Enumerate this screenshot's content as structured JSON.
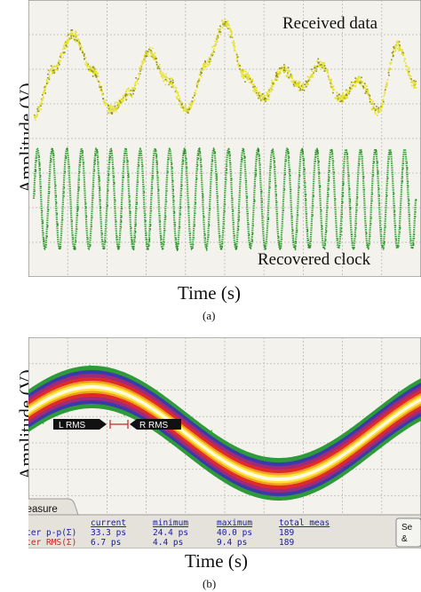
{
  "chart_data": [
    {
      "type": "line",
      "panel": "(a)",
      "xlabel": "Time (s)",
      "ylabel": "Amplitude (V)",
      "grid": true,
      "annotations": [
        "Received data",
        "Recovered clock"
      ],
      "series": [
        {
          "name": "Received data",
          "color": "#e6e22a",
          "x": [
            0,
            0.05,
            0.1,
            0.15,
            0.2,
            0.25,
            0.3,
            0.35,
            0.4,
            0.45,
            0.5,
            0.55,
            0.6,
            0.65,
            0.7,
            0.75,
            0.8,
            0.85,
            0.9,
            0.95,
            1
          ],
          "values": [
            0.15,
            0.55,
            0.85,
            0.55,
            0.2,
            0.35,
            0.7,
            0.45,
            0.2,
            0.6,
            0.95,
            0.5,
            0.3,
            0.55,
            0.4,
            0.6,
            0.3,
            0.45,
            0.2,
            0.75,
            0.4
          ]
        },
        {
          "name": "Recovered clock",
          "color": "#3aa63a",
          "cycles": 26
        }
      ]
    },
    {
      "type": "line",
      "panel": "(b)",
      "xlabel": "Time (s)",
      "ylabel": "Amplitude (V)",
      "grid": true,
      "markers": [
        "L RMS",
        "R RMS"
      ],
      "series": [
        {
          "name": "",
          "color": "#ff2a2a",
          "cycles": 1.05
        }
      ],
      "measure_panel": {
        "tab": "Measure",
        "columns": [
          "current",
          "minimum",
          "maximum",
          "total meas"
        ],
        "rows": [
          {
            "label": "Jitter p-p(Σ)",
            "values": [
              "33.3 ps",
              "24.4 ps",
              "40.0 ps",
              "189"
            ],
            "color": "#1a1aa0"
          },
          {
            "label": "Jitter RMS(Σ)",
            "values": [
              "6.7 ps",
              "4.4 ps",
              "9.4 ps",
              "189"
            ],
            "color": "#cc2222"
          }
        ],
        "side_button": "Se\n&"
      }
    }
  ],
  "captions": [
    "(a)",
    "(b)"
  ]
}
